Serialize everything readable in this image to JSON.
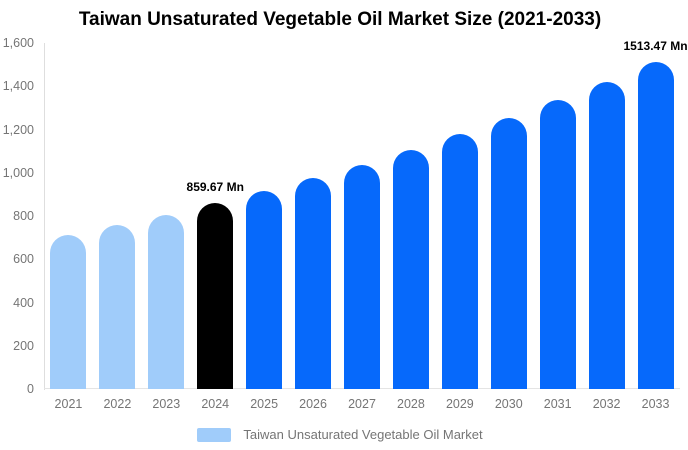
{
  "chart_data": {
    "type": "bar",
    "title": "Taiwan Unsaturated Vegetable Oil Market Size (2021-2033)",
    "categories": [
      "2021",
      "2022",
      "2023",
      "2024",
      "2025",
      "2026",
      "2027",
      "2028",
      "2029",
      "2030",
      "2031",
      "2032",
      "2033"
    ],
    "values": [
      712,
      758,
      807,
      859.67,
      915,
      975,
      1038,
      1106,
      1177,
      1254,
      1335,
      1421,
      1513.47
    ],
    "unit": "Mn",
    "bar_colors": [
      "#A0CCFA",
      "#A0CCFA",
      "#A0CCFA",
      "#000000",
      "#0669FB",
      "#0669FB",
      "#0669FB",
      "#0669FB",
      "#0669FB",
      "#0669FB",
      "#0669FB",
      "#0669FB",
      "#0669FB"
    ],
    "ylim": [
      0,
      1600
    ],
    "yticks": [
      "0",
      "200",
      "400",
      "600",
      "800",
      "1,000",
      "1,200",
      "1,400",
      "1,600"
    ],
    "grid": false,
    "annotations": [
      {
        "index": 3,
        "text": "859.67 Mn"
      },
      {
        "index": 12,
        "text": "1513.47 Mn"
      }
    ],
    "legend": {
      "label": "Taiwan Unsaturated Vegetable Oil Market",
      "swatch_color": "#A0CCFA",
      "position": "bottom-center"
    },
    "axis_text_color": "#757575",
    "axis_line_color": "#DEDEDE"
  }
}
